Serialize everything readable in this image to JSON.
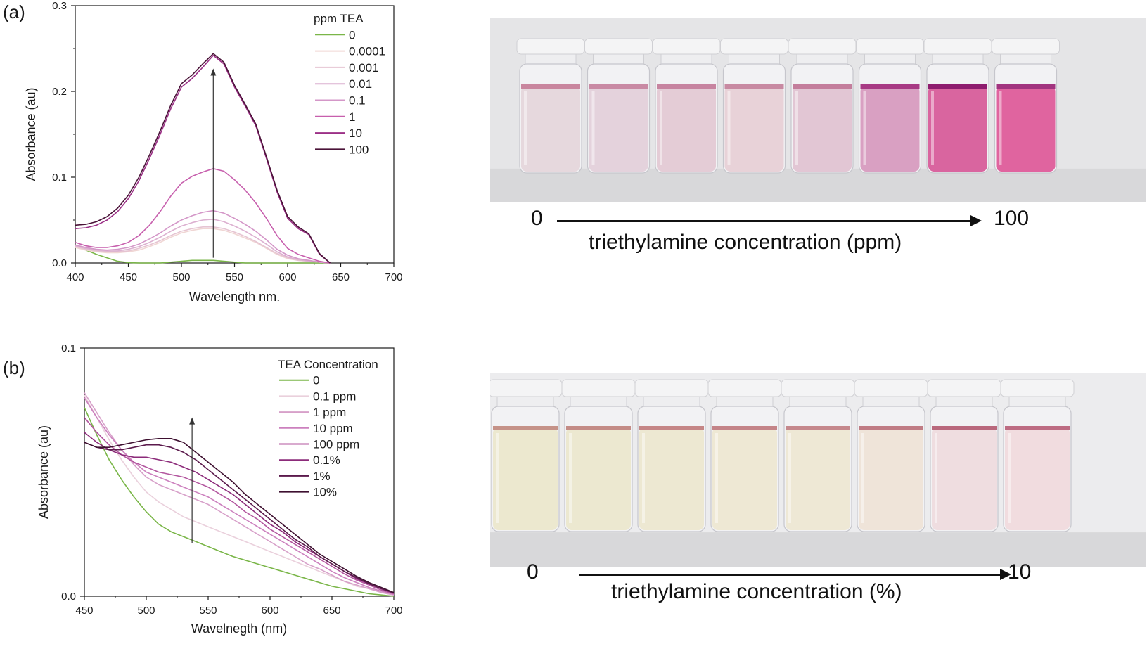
{
  "panels": {
    "a": {
      "label": "(a)"
    },
    "b": {
      "label": "(b)"
    }
  },
  "chart_data": [
    {
      "type": "line",
      "xlabel": "Wavelength nm.",
      "ylabel": "Absorbance (au)",
      "xlim": [
        400,
        700
      ],
      "ylim": [
        0,
        0.3
      ],
      "xticks": [
        "400",
        "450",
        "500",
        "550",
        "600",
        "650",
        "700"
      ],
      "yticks": [
        "0.0",
        "0.1",
        "0.2",
        "0.3"
      ],
      "legend_title": "ppm TEA",
      "legend_position": "top-right",
      "annotation": "upward arrow at 530 nm indicating increasing absorbance with concentration",
      "arrow": {
        "x": 530,
        "y_from": 0.006,
        "y_to": 0.225
      },
      "x": [
        400,
        410,
        420,
        430,
        440,
        450,
        460,
        470,
        480,
        490,
        500,
        510,
        520,
        530,
        540,
        550,
        560,
        570,
        580,
        590,
        600,
        610,
        620,
        630,
        640
      ],
      "series": [
        {
          "name": "0",
          "color": "#7ab648",
          "values": [
            0.02,
            0.015,
            0.01,
            0.006,
            0.002,
            0.0005,
            0,
            0,
            0,
            0.001,
            0.002,
            0.003,
            0.003,
            0.003,
            0.002,
            0.001,
            0,
            0,
            0,
            0,
            0,
            0,
            0,
            0,
            0
          ]
        },
        {
          "name": "0.0001",
          "color": "#f0d6d4",
          "values": [
            0.018,
            0.015,
            0.013,
            0.012,
            0.012,
            0.013,
            0.015,
            0.019,
            0.024,
            0.03,
            0.035,
            0.038,
            0.04,
            0.04,
            0.038,
            0.034,
            0.029,
            0.024,
            0.017,
            0.01,
            0.005,
            0.003,
            0.002,
            0.001,
            0
          ]
        },
        {
          "name": "0.001",
          "color": "#e6c4d2",
          "values": [
            0.019,
            0.016,
            0.014,
            0.013,
            0.013,
            0.014,
            0.017,
            0.021,
            0.026,
            0.032,
            0.037,
            0.04,
            0.042,
            0.042,
            0.04,
            0.036,
            0.031,
            0.025,
            0.018,
            0.011,
            0.006,
            0.003,
            0.002,
            0.001,
            0
          ]
        },
        {
          "name": "0.01",
          "color": "#dcb0d0",
          "values": [
            0.02,
            0.017,
            0.015,
            0.014,
            0.014,
            0.016,
            0.019,
            0.024,
            0.03,
            0.037,
            0.043,
            0.047,
            0.05,
            0.051,
            0.048,
            0.043,
            0.037,
            0.03,
            0.022,
            0.013,
            0.007,
            0.004,
            0.002,
            0.001,
            0
          ]
        },
        {
          "name": "0.1",
          "color": "#d497c8",
          "values": [
            0.021,
            0.018,
            0.016,
            0.015,
            0.016,
            0.018,
            0.022,
            0.028,
            0.035,
            0.043,
            0.05,
            0.055,
            0.059,
            0.061,
            0.058,
            0.052,
            0.045,
            0.037,
            0.027,
            0.016,
            0.009,
            0.005,
            0.003,
            0.001,
            0
          ]
        },
        {
          "name": "1",
          "color": "#c75fad",
          "values": [
            0.024,
            0.02,
            0.018,
            0.018,
            0.02,
            0.024,
            0.032,
            0.044,
            0.06,
            0.078,
            0.093,
            0.101,
            0.106,
            0.11,
            0.107,
            0.097,
            0.085,
            0.07,
            0.052,
            0.032,
            0.017,
            0.01,
            0.006,
            0.002,
            0
          ]
        },
        {
          "name": "10",
          "color": "#9b2f86",
          "values": [
            0.04,
            0.041,
            0.044,
            0.05,
            0.06,
            0.075,
            0.096,
            0.122,
            0.15,
            0.18,
            0.205,
            0.215,
            0.228,
            0.242,
            0.232,
            0.205,
            0.183,
            0.16,
            0.122,
            0.083,
            0.052,
            0.04,
            0.033,
            0.01,
            0
          ]
        },
        {
          "name": "100",
          "color": "#4a1338",
          "values": [
            0.044,
            0.045,
            0.048,
            0.054,
            0.064,
            0.079,
            0.1,
            0.126,
            0.154,
            0.184,
            0.209,
            0.219,
            0.232,
            0.244,
            0.234,
            0.207,
            0.185,
            0.162,
            0.124,
            0.085,
            0.054,
            0.042,
            0.034,
            0.011,
            0
          ]
        }
      ]
    },
    {
      "type": "line",
      "xlabel": "Wavelnegth (nm)",
      "ylabel": "Absorbance (au)",
      "xlim": [
        450,
        700
      ],
      "ylim": [
        0,
        0.1
      ],
      "xticks": [
        "450",
        "500",
        "550",
        "600",
        "650",
        "700"
      ],
      "yticks": [
        "0.0",
        "0.1"
      ],
      "legend_title": "TEA Concentration",
      "legend_position": "top-right",
      "annotation": "upward arrow at 537 nm indicating increasing absorbance with concentration",
      "arrow": {
        "x": 537,
        "y_from": 0.0215,
        "y_to": 0.0715
      },
      "x": [
        450,
        460,
        470,
        480,
        490,
        500,
        510,
        520,
        530,
        540,
        550,
        560,
        570,
        580,
        590,
        600,
        610,
        620,
        630,
        640,
        650,
        660,
        670,
        680,
        690,
        700
      ],
      "series": [
        {
          "name": "0",
          "color": "#7ab648",
          "values": [
            0.076,
            0.065,
            0.055,
            0.047,
            0.04,
            0.034,
            0.029,
            0.026,
            0.024,
            0.022,
            0.02,
            0.018,
            0.016,
            0.0145,
            0.013,
            0.0115,
            0.01,
            0.0085,
            0.007,
            0.0055,
            0.004,
            0.003,
            0.002,
            0.001,
            0.0005,
            0
          ]
        },
        {
          "name": "0.1 ppm",
          "color": "#ead0dc",
          "values": [
            0.081,
            0.072,
            0.063,
            0.055,
            0.048,
            0.042,
            0.038,
            0.035,
            0.032,
            0.03,
            0.028,
            0.026,
            0.024,
            0.022,
            0.02,
            0.018,
            0.016,
            0.014,
            0.012,
            0.01,
            0.008,
            0.006,
            0.004,
            0.003,
            0.0015,
            0.0005
          ]
        },
        {
          "name": "1 ppm",
          "color": "#d7a0c9",
          "values": [
            0.082,
            0.074,
            0.066,
            0.059,
            0.053,
            0.048,
            0.045,
            0.043,
            0.041,
            0.039,
            0.037,
            0.034,
            0.031,
            0.028,
            0.025,
            0.022,
            0.019,
            0.016,
            0.013,
            0.011,
            0.0085,
            0.006,
            0.0045,
            0.003,
            0.0015,
            0.0005
          ]
        },
        {
          "name": "10 ppm",
          "color": "#cc80be",
          "values": [
            0.08,
            0.072,
            0.065,
            0.059,
            0.054,
            0.05,
            0.048,
            0.046,
            0.044,
            0.042,
            0.04,
            0.037,
            0.034,
            0.031,
            0.028,
            0.025,
            0.022,
            0.019,
            0.016,
            0.013,
            0.01,
            0.0075,
            0.0055,
            0.0035,
            0.002,
            0.0008
          ]
        },
        {
          "name": "100 ppm",
          "color": "#b3579f",
          "values": [
            0.072,
            0.066,
            0.061,
            0.057,
            0.054,
            0.052,
            0.05,
            0.049,
            0.048,
            0.046,
            0.044,
            0.041,
            0.038,
            0.034,
            0.031,
            0.027,
            0.024,
            0.021,
            0.018,
            0.015,
            0.012,
            0.009,
            0.0065,
            0.0045,
            0.0025,
            0.001
          ]
        },
        {
          "name": "0.1%",
          "color": "#8c2b7a",
          "values": [
            0.066,
            0.062,
            0.059,
            0.057,
            0.056,
            0.056,
            0.055,
            0.054,
            0.052,
            0.05,
            0.047,
            0.044,
            0.041,
            0.037,
            0.033,
            0.029,
            0.026,
            0.022,
            0.019,
            0.016,
            0.013,
            0.01,
            0.007,
            0.005,
            0.003,
            0.0012
          ]
        },
        {
          "name": "1%",
          "color": "#5b1a4c",
          "values": [
            0.062,
            0.06,
            0.059,
            0.059,
            0.06,
            0.061,
            0.061,
            0.06,
            0.058,
            0.055,
            0.051,
            0.047,
            0.043,
            0.039,
            0.035,
            0.031,
            0.027,
            0.023,
            0.02,
            0.016,
            0.013,
            0.01,
            0.0075,
            0.005,
            0.003,
            0.0013
          ]
        },
        {
          "name": "10%",
          "color": "#3e1030",
          "values": [
            0.062,
            0.06,
            0.06,
            0.061,
            0.062,
            0.063,
            0.0635,
            0.0635,
            0.062,
            0.058,
            0.054,
            0.05,
            0.046,
            0.041,
            0.037,
            0.033,
            0.029,
            0.025,
            0.021,
            0.017,
            0.014,
            0.011,
            0.008,
            0.0055,
            0.0035,
            0.0015
          ]
        }
      ]
    }
  ],
  "photo_a": {
    "vial_colors": [
      "#e6d8dd",
      "#e4d2dc",
      "#e4ccd6",
      "#e8d2d8",
      "#e2c6d4",
      "#d9a0c2",
      "#d9659f",
      "#e0649f"
    ],
    "meniscus_colors": [
      "#c9869e",
      "#c98aa4",
      "#c784a0",
      "#c88aa2",
      "#c47e9c",
      "#a83a84",
      "#8e1c6e",
      "#a2347f"
    ],
    "background": "#e5e5e7",
    "gradient": {
      "start": "0",
      "end": "100",
      "title": "triethylamine concentration (ppm)"
    }
  },
  "photo_b": {
    "vial_colors": [
      "#ece8cf",
      "#ece8d0",
      "#ede8d2",
      "#eee8d4",
      "#eee8d5",
      "#efe4d9",
      "#efdde0",
      "#f1dcdf"
    ],
    "meniscus_colors": [
      "#c59288",
      "#c48c86",
      "#c58686",
      "#c48488",
      "#c5888c",
      "#c07c84",
      "#b9687c",
      "#bd6c82"
    ],
    "background": "#ececee",
    "gradient": {
      "start": "0",
      "end": "10",
      "title": "triethylamine concentration (%)"
    }
  }
}
